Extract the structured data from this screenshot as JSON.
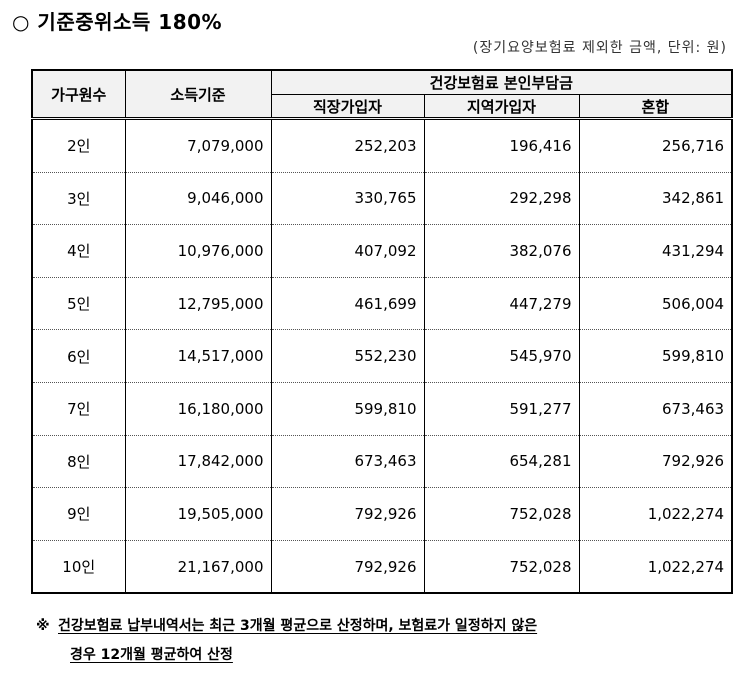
{
  "title": "○ 기준중위소득 180%",
  "unit_note": "(장기요양보험료 제외한 금액, 단위: 원)",
  "table": {
    "header_household": "가구원수",
    "header_income": "소득기준",
    "header_group": "건강보험료 본인부담금",
    "header_sub": [
      "직장가입자",
      "지역가입자",
      "혼합"
    ],
    "rows": [
      {
        "household": "2인",
        "income": "7,079,000",
        "workplace": "252,203",
        "regional": "196,416",
        "mixed": "256,716"
      },
      {
        "household": "3인",
        "income": "9,046,000",
        "workplace": "330,765",
        "regional": "292,298",
        "mixed": "342,861"
      },
      {
        "household": "4인",
        "income": "10,976,000",
        "workplace": "407,092",
        "regional": "382,076",
        "mixed": "431,294"
      },
      {
        "household": "5인",
        "income": "12,795,000",
        "workplace": "461,699",
        "regional": "447,279",
        "mixed": "506,004"
      },
      {
        "household": "6인",
        "income": "14,517,000",
        "workplace": "552,230",
        "regional": "545,970",
        "mixed": "599,810"
      },
      {
        "household": "7인",
        "income": "16,180,000",
        "workplace": "599,810",
        "regional": "591,277",
        "mixed": "673,463"
      },
      {
        "household": "8인",
        "income": "17,842,000",
        "workplace": "673,463",
        "regional": "654,281",
        "mixed": "792,926"
      },
      {
        "household": "9인",
        "income": "19,505,000",
        "workplace": "792,926",
        "regional": "752,028",
        "mixed": "1,022,274"
      },
      {
        "household": "10인",
        "income": "21,167,000",
        "workplace": "792,926",
        "regional": "752,028",
        "mixed": "1,022,274"
      }
    ]
  },
  "footnote": {
    "mark": "※",
    "line1": "건강보험료 납부내역서는 최근 3개월 평균으로 산정하며, 보험료가 일정하지 않은",
    "line2": "경우 12개월 평균하여 산정"
  }
}
